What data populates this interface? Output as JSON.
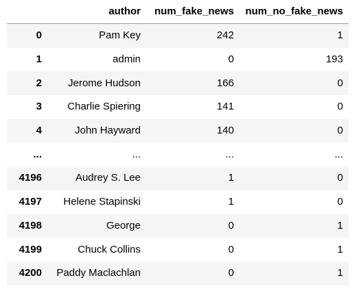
{
  "table": {
    "columns": [
      "author",
      "num_fake_news",
      "num_no_fake_news"
    ],
    "rows": [
      {
        "index": "0",
        "author": "Pam Key",
        "num_fake_news": "242",
        "num_no_fake_news": "1"
      },
      {
        "index": "1",
        "author": "admin",
        "num_fake_news": "0",
        "num_no_fake_news": "193"
      },
      {
        "index": "2",
        "author": "Jerome Hudson",
        "num_fake_news": "166",
        "num_no_fake_news": "0"
      },
      {
        "index": "3",
        "author": "Charlie Spiering",
        "num_fake_news": "141",
        "num_no_fake_news": "0"
      },
      {
        "index": "4",
        "author": "John Hayward",
        "num_fake_news": "140",
        "num_no_fake_news": "0"
      },
      {
        "index": "...",
        "author": "...",
        "num_fake_news": "...",
        "num_no_fake_news": "..."
      },
      {
        "index": "4196",
        "author": "Audrey S. Lee",
        "num_fake_news": "1",
        "num_no_fake_news": "0"
      },
      {
        "index": "4197",
        "author": "Helene Stapinski",
        "num_fake_news": "1",
        "num_no_fake_news": "0"
      },
      {
        "index": "4198",
        "author": "George",
        "num_fake_news": "0",
        "num_no_fake_news": "1"
      },
      {
        "index": "4199",
        "author": "Chuck Collins",
        "num_fake_news": "0",
        "num_no_fake_news": "1"
      },
      {
        "index": "4200",
        "author": "Paddy Maclachlan",
        "num_fake_news": "0",
        "num_no_fake_news": "1"
      }
    ]
  }
}
